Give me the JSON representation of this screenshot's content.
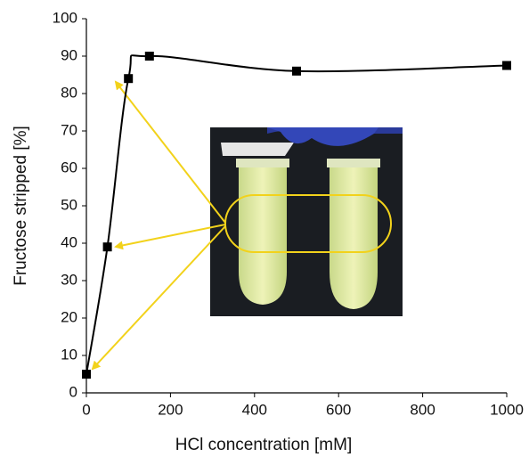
{
  "chart_data": {
    "type": "line",
    "x_label": "HCl concentration [mM]",
    "y_label": "Fructose stripped [%]",
    "x": [
      0,
      50,
      100,
      150,
      500,
      1000
    ],
    "series": [
      {
        "color": "#000000",
        "values": [
          5,
          39,
          84,
          90,
          86,
          87.5
        ]
      }
    ],
    "xlim": [
      0,
      1000
    ],
    "xticks": [
      0,
      200,
      400,
      600,
      800,
      1000
    ],
    "ylim": [
      0,
      100
    ],
    "yticks": [
      0,
      10,
      20,
      30,
      40,
      50,
      60,
      70,
      80,
      90,
      100
    ],
    "smooth": true,
    "markers": true
  }
}
